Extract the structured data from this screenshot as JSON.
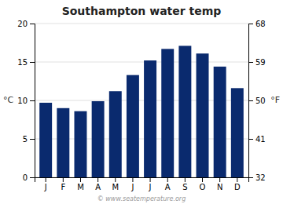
{
  "chart_data": {
    "type": "bar",
    "title": "Southampton water temp",
    "categories": [
      "J",
      "F",
      "M",
      "A",
      "M",
      "J",
      "J",
      "A",
      "S",
      "O",
      "N",
      "D"
    ],
    "values": [
      9.7,
      9.0,
      8.6,
      9.9,
      11.2,
      13.3,
      15.2,
      16.7,
      17.1,
      16.1,
      14.4,
      11.6
    ],
    "color": "#0a2a6e",
    "ylim": [
      0,
      20
    ],
    "yticks": [
      0,
      5,
      10,
      15,
      20
    ],
    "y2lim": [
      32,
      68
    ],
    "y2ticks": [
      32,
      41,
      50,
      59,
      68
    ],
    "ylabel": "°C",
    "y2label": "°F",
    "grid": true,
    "annotations": [
      "© www.seatemperature.org"
    ]
  }
}
